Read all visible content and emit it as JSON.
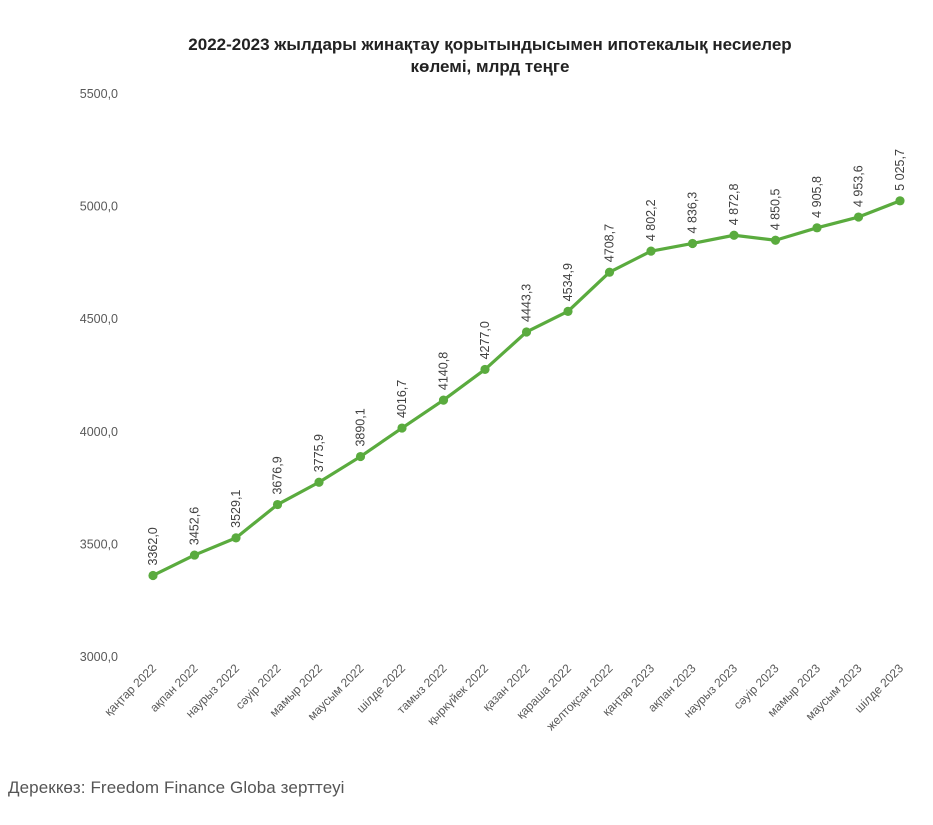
{
  "chart_data": {
    "type": "line",
    "title_lines": [
      "2022-2023 жылдары жинақтау қорытындысымен ипотекалық несиелер",
      "көлемі, млрд теңге"
    ],
    "xlabel": "",
    "ylabel": "",
    "ylim": [
      3000,
      5500
    ],
    "yticks": [
      "3000,0",
      "3500,0",
      "4000,0",
      "4500,0",
      "5000,0",
      "5500,0"
    ],
    "grid": false,
    "legend": "none",
    "color": "#5aab3e",
    "categories": [
      "қаңтар 2022",
      "ақпан 2022",
      "наурыз 2022",
      "сәуір 2022",
      "мамыр 2022",
      "маусым 2022",
      "шілде 2022",
      "тамыз 2022",
      "қыркүйек 2022",
      "қазан 2022",
      "қараша 2022",
      "желтоқсан 2022",
      "қаңтар 2023",
      "ақпан 2023",
      "наурыз 2023",
      "сәуір 2023",
      "мамыр 2023",
      "маусым 2023",
      "шілде 2023"
    ],
    "series": [
      {
        "values": [
          3362.0,
          3452.6,
          3529.1,
          3676.9,
          3775.9,
          3890.1,
          4016.7,
          4140.8,
          4277.0,
          4443.3,
          4534.9,
          4708.7,
          4802.2,
          4836.3,
          4872.8,
          4850.5,
          4905.8,
          4953.6,
          5025.7
        ],
        "labels": [
          "3362,0",
          "3452,6",
          "3529,1",
          "3676,9",
          "3775,9",
          "3890,1",
          "4016,7",
          "4140,8",
          "4277,0",
          "4443,3",
          "4534,9",
          "4708,7",
          "4 802,2",
          "4 836,3",
          "4 872,8",
          "4 850,5",
          "4 905,8",
          "4 953,6",
          "5 025,7"
        ]
      }
    ]
  },
  "source": "Дереккөз: Freedom Finance Globa зерттеуі"
}
